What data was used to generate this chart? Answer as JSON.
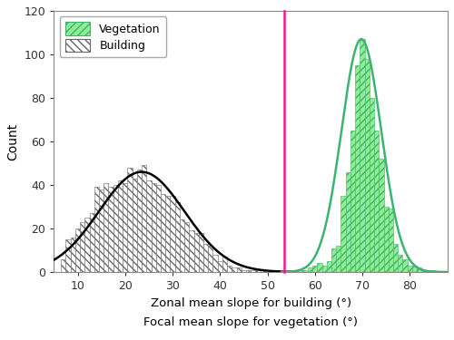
{
  "xlabel_bottom": "Zonal mean slope for building (°)",
  "xlabel_top": "Focal mean slope for vegetation (°)",
  "ylabel": "Count",
  "xlim": [
    5,
    88
  ],
  "ylim": [
    0,
    120
  ],
  "yticks": [
    0,
    20,
    40,
    60,
    80,
    100,
    120
  ],
  "xticks": [
    10,
    20,
    30,
    40,
    50,
    60,
    70,
    80
  ],
  "threshold_line_x": 53.5,
  "threshold_line_color": "#FF1493",
  "building_hist_color": "white",
  "building_hist_edgecolor": "#666666",
  "building_curve_color": "black",
  "vegetation_hist_color": "#90EE90",
  "vegetation_hist_edgecolor": "#3CB371",
  "vegetation_curve_color": "#3CB371",
  "building_mean": 23.5,
  "building_std": 9.0,
  "building_amplitude": 46.0,
  "vegetation_mean": 69.8,
  "vegetation_std": 4.2,
  "vegetation_amplitude": 107.0,
  "bin_width": 1.0,
  "building_counts": {
    "7": 6,
    "8": 15,
    "9": 16,
    "10": 20,
    "11": 23,
    "12": 25,
    "13": 27,
    "14": 39,
    "15": 38,
    "16": 41,
    "17": 39,
    "18": 40,
    "19": 42,
    "20": 41,
    "21": 48,
    "22": 43,
    "23": 47,
    "24": 49,
    "25": 42,
    "26": 41,
    "27": 40,
    "28": 36,
    "29": 35,
    "30": 35,
    "31": 32,
    "32": 24,
    "33": 23,
    "34": 19,
    "35": 18,
    "36": 18,
    "37": 13,
    "38": 12,
    "39": 8,
    "40": 5,
    "41": 7,
    "42": 3,
    "43": 2,
    "44": 2,
    "45": 1,
    "46": 1,
    "47": 1,
    "48": 1,
    "49": 1,
    "50": 1,
    "51": 1,
    "52": 1
  },
  "vegetation_counts": {
    "56": 1,
    "57": 1,
    "58": 1,
    "59": 2,
    "60": 3,
    "61": 4,
    "62": 3,
    "63": 5,
    "64": 11,
    "65": 12,
    "66": 35,
    "67": 46,
    "68": 65,
    "69": 95,
    "70": 107,
    "71": 98,
    "72": 80,
    "73": 65,
    "74": 52,
    "75": 30,
    "76": 29,
    "77": 13,
    "78": 8,
    "79": 6,
    "80": 3,
    "81": 3,
    "82": 2,
    "83": 1,
    "84": 1,
    "85": 1
  }
}
